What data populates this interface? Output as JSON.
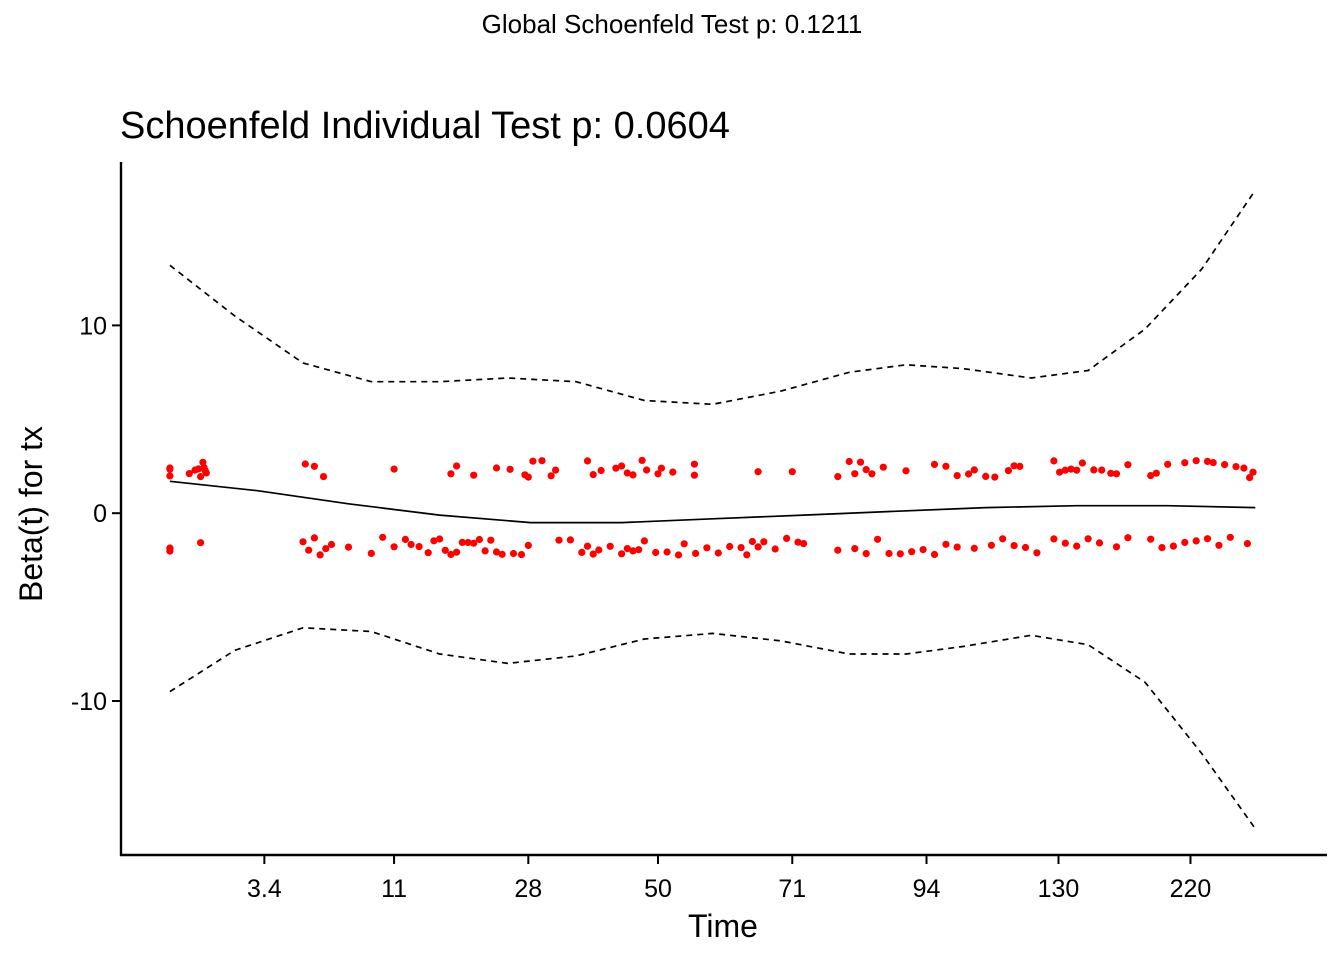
{
  "chart_data": {
    "type": "scatter",
    "suptitle": "Global Schoenfeld Test p: 0.1211",
    "title": "Schoenfeld Individual Test p: 0.0604",
    "xlabel": "Time",
    "ylabel": "Beta(t) for tx",
    "x_ticks": [
      {
        "label": "3.4",
        "pos": 1.26
      },
      {
        "label": "11",
        "pos": 2.4
      },
      {
        "label": "28",
        "pos": 3.58
      },
      {
        "label": "50",
        "pos": 4.72
      },
      {
        "label": "71",
        "pos": 5.9
      },
      {
        "label": "94",
        "pos": 7.08
      },
      {
        "label": "130",
        "pos": 8.24
      },
      {
        "label": "220",
        "pos": 9.4
      }
    ],
    "y_ticks": [
      {
        "label": "10",
        "value": 10
      },
      {
        "label": "0",
        "value": 0
      },
      {
        "label": "-10",
        "value": -10
      }
    ],
    "xlim": [
      0,
      10.6
    ],
    "ylim": [
      -18.2,
      18.7
    ],
    "grid": false,
    "colors": {
      "points": "#ff0000",
      "fit": "#000000",
      "band": "#000000",
      "axis": "#000000"
    },
    "series": [
      {
        "role": "fit",
        "style": "solid",
        "x": [
          0.43,
          1.2,
          2.0,
          2.8,
          3.6,
          4.4,
          5.2,
          6.0,
          6.8,
          7.6,
          8.4,
          9.2,
          9.97
        ],
        "y": [
          1.7,
          1.2,
          0.5,
          -0.1,
          -0.5,
          -0.5,
          -0.3,
          -0.1,
          0.1,
          0.3,
          0.4,
          0.4,
          0.3
        ]
      },
      {
        "role": "upper-band",
        "style": "dashed",
        "x": [
          0.43,
          1.0,
          1.6,
          2.2,
          2.8,
          3.4,
          4.0,
          4.6,
          5.2,
          5.8,
          6.4,
          6.9,
          7.4,
          8.0,
          8.5,
          9.0,
          9.5,
          9.97
        ],
        "y": [
          13.2,
          10.5,
          8.0,
          7.0,
          7.0,
          7.2,
          7.0,
          6.0,
          5.8,
          6.5,
          7.5,
          7.9,
          7.7,
          7.2,
          7.6,
          9.8,
          13.0,
          17.2
        ]
      },
      {
        "role": "lower-band",
        "style": "dashed",
        "x": [
          0.43,
          1.0,
          1.6,
          2.2,
          2.8,
          3.4,
          4.0,
          4.6,
          5.2,
          5.8,
          6.4,
          6.9,
          7.4,
          8.0,
          8.5,
          9.0,
          9.5,
          9.97
        ],
        "y": [
          -9.5,
          -7.3,
          -6.1,
          -6.3,
          -7.5,
          -8.0,
          -7.6,
          -6.7,
          -6.4,
          -6.8,
          -7.5,
          -7.5,
          -7.1,
          -6.5,
          -7.0,
          -9.0,
          -12.8,
          -16.8
        ]
      },
      {
        "role": "residuals",
        "style": "points",
        "x": [
          0.43,
          0.43,
          0.43,
          0.6,
          0.65,
          0.68,
          0.7,
          0.72,
          0.73,
          0.74,
          0.75,
          1.62,
          1.7,
          1.78,
          2.4,
          2.9,
          2.95,
          3.1,
          3.3,
          3.42,
          3.55,
          3.58,
          3.62,
          3.7,
          3.78,
          3.82,
          4.1,
          4.15,
          4.22,
          4.35,
          4.4,
          4.45,
          4.5,
          4.58,
          4.62,
          4.72,
          4.75,
          4.85,
          5.04,
          5.04,
          5.6,
          5.9,
          6.3,
          6.4,
          6.45,
          6.5,
          6.55,
          6.6,
          6.7,
          6.9,
          7.15,
          7.25,
          7.35,
          7.45,
          7.5,
          7.6,
          7.68,
          7.8,
          7.85,
          7.9,
          8.2,
          8.25,
          8.3,
          8.35,
          8.4,
          8.45,
          8.55,
          8.62,
          8.7,
          8.75,
          8.85,
          9.05,
          9.1,
          9.2,
          9.35,
          9.45,
          9.55,
          9.6,
          9.7,
          9.8,
          9.87,
          9.92,
          9.95,
          0.43,
          0.43,
          0.43,
          0.7,
          1.6,
          1.65,
          1.7,
          1.75,
          1.8,
          1.85,
          2.0,
          2.2,
          2.3,
          2.4,
          2.5,
          2.55,
          2.62,
          2.7,
          2.75,
          2.8,
          2.85,
          2.9,
          2.95,
          3.0,
          3.05,
          3.1,
          3.15,
          3.2,
          3.25,
          3.3,
          3.35,
          3.45,
          3.52,
          3.58,
          3.85,
          3.95,
          4.05,
          4.1,
          4.15,
          4.2,
          4.3,
          4.4,
          4.45,
          4.5,
          4.55,
          4.6,
          4.7,
          4.8,
          4.9,
          4.95,
          5.05,
          5.15,
          5.25,
          5.35,
          5.45,
          5.5,
          5.55,
          5.6,
          5.65,
          5.75,
          5.85,
          5.95,
          6.0,
          6.3,
          6.45,
          6.55,
          6.65,
          6.75,
          6.85,
          6.95,
          7.05,
          7.15,
          7.25,
          7.35,
          7.5,
          7.65,
          7.75,
          7.85,
          7.95,
          8.05,
          8.2,
          8.3,
          8.4,
          8.5,
          8.6,
          8.75,
          8.85,
          9.05,
          9.15,
          9.25,
          9.35,
          9.45,
          9.55,
          9.65,
          9.75,
          9.9
        ]
      }
    ]
  }
}
